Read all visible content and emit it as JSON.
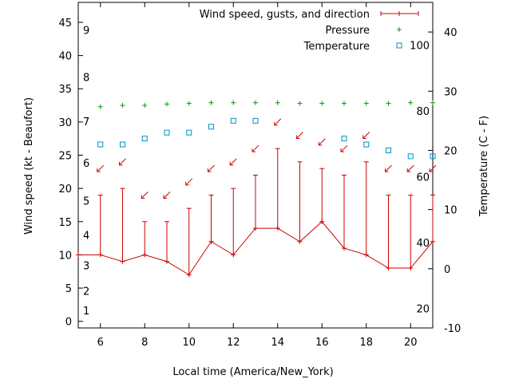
{
  "chart_data": {
    "type": "line",
    "xlabel": "Local time (America/New_York)",
    "ylabel_left": "Wind speed (kt - Beaufort)",
    "ylabel_right": "Temperature (C - F)",
    "xlim": [
      5,
      21
    ],
    "ylim_left": [
      -1,
      48
    ],
    "ylim_right": [
      -10,
      45
    ],
    "x_ticks": [
      "6",
      "8",
      "10",
      "12",
      "14",
      "16",
      "18",
      "20"
    ],
    "y_left_ticks": [
      "0",
      "5",
      "10",
      "15",
      "20",
      "25",
      "30",
      "35",
      "40",
      "45"
    ],
    "y_right_ticks": [
      "-10",
      "0",
      "10",
      "20",
      "30",
      "40"
    ],
    "beaufort_labels": [
      "1",
      "2",
      "3",
      "4",
      "5",
      "6",
      "7",
      "8",
      "9"
    ],
    "fahrenheit_labels": [
      "20",
      "40",
      "60",
      "80",
      "100"
    ],
    "legend": [
      {
        "label": "Wind speed, gusts, and direction",
        "color": "#cc0000"
      },
      {
        "label": "Pressure",
        "color": "#00a000"
      },
      {
        "label": "Temperature",
        "color": "#0090c0"
      }
    ],
    "hours": [
      5,
      6,
      7,
      8,
      9,
      10,
      11,
      12,
      13,
      14,
      15,
      16,
      17,
      18,
      19,
      20,
      21
    ],
    "wind_speed": [
      10,
      10,
      9,
      10,
      9,
      7,
      12,
      10,
      14,
      14,
      12,
      15,
      11,
      10,
      8,
      8,
      12
    ],
    "wind_gust": [
      null,
      19,
      20,
      15,
      15,
      17,
      19,
      20,
      22,
      26,
      24,
      23,
      22,
      24,
      19,
      19,
      19
    ],
    "wind_arrow_level": [
      null,
      23,
      24,
      19,
      19,
      21,
      23,
      24,
      26,
      30,
      28,
      27,
      26,
      28,
      23,
      23,
      23
    ],
    "pressure_level": [
      null,
      32.3,
      32.5,
      32.5,
      32.7,
      32.8,
      32.9,
      32.9,
      32.9,
      32.9,
      32.8,
      32.8,
      32.8,
      32.8,
      32.8,
      32.9,
      32.9
    ],
    "temperature_c": [
      null,
      21,
      21,
      22,
      23,
      23,
      24,
      25,
      25,
      null,
      null,
      null,
      22,
      21,
      20,
      19,
      19
    ]
  }
}
